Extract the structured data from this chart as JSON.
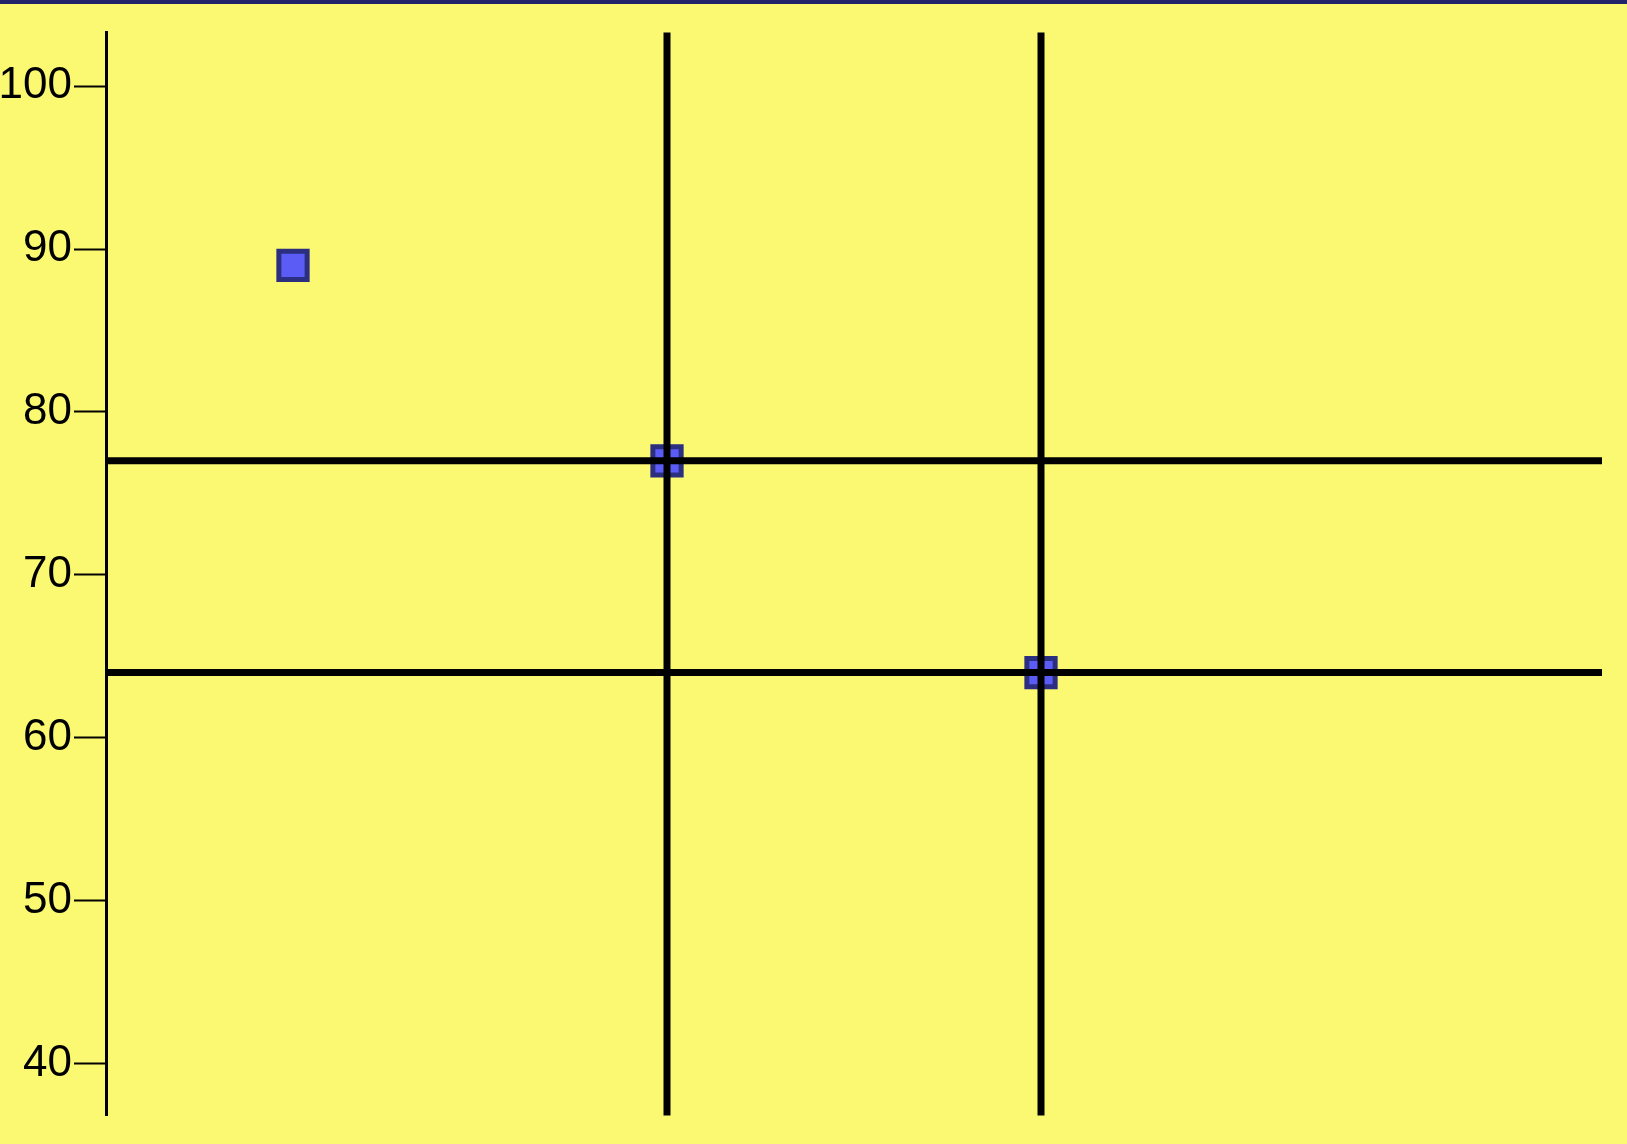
{
  "chart_data": {
    "type": "scatter",
    "categories": [
      null,
      null,
      null,
      null
    ],
    "series": [
      {
        "color": "#5a5cf5",
        "values": [
          89,
          77,
          64,
          null
        ]
      }
    ],
    "ylim": [
      36.8,
      103.3
    ],
    "yticks": [
      40,
      50,
      60,
      70,
      80,
      90,
      100
    ],
    "marker": "square",
    "grid": false,
    "legend": false,
    "tick_labels": "y",
    "ref_lines": [
      {
        "axis": "y",
        "value": 77,
        "color": "#000000"
      },
      {
        "axis": "y",
        "value": 64,
        "color": "#000000"
      }
    ]
  }
}
